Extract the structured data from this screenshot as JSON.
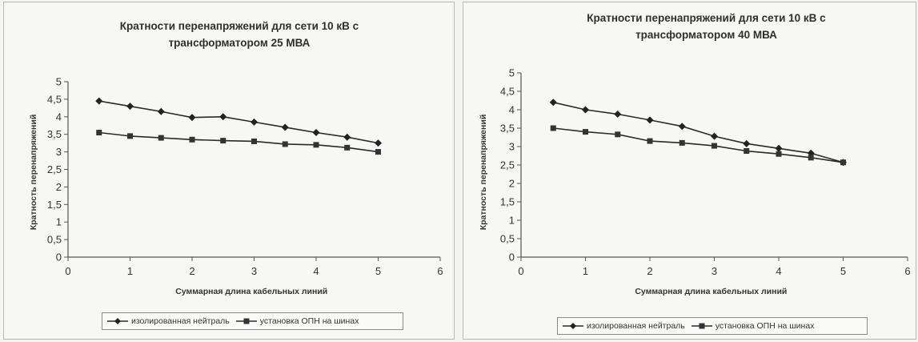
{
  "chart_data": [
    {
      "type": "line",
      "title": "Кратности перенапряжений для сети 10 кВ с трансформатором 25 МВА",
      "xlabel": "Суммарная длина кабельных линий",
      "ylabel": "Кратность перенапряжений",
      "xlim": [
        0,
        6
      ],
      "ylim": [
        0,
        5
      ],
      "x_ticks": [
        "0",
        "1",
        "2",
        "3",
        "4",
        "5",
        "6"
      ],
      "y_ticks": [
        "0",
        "0,5",
        "1",
        "1,5",
        "2",
        "2,5",
        "3",
        "3,5",
        "4",
        "4,5",
        "5"
      ],
      "x": [
        0.5,
        1,
        1.5,
        2,
        2.5,
        3,
        3.5,
        4,
        4.5,
        5
      ],
      "series": [
        {
          "name": "изолированная нейтраль",
          "marker": "diamond",
          "values": [
            4.45,
            4.3,
            4.15,
            3.98,
            4.0,
            3.85,
            3.7,
            3.55,
            3.42,
            3.25
          ]
        },
        {
          "name": "установка ОПН на шинах",
          "marker": "square",
          "values": [
            3.55,
            3.45,
            3.4,
            3.35,
            3.32,
            3.3,
            3.22,
            3.2,
            3.12,
            3.0
          ]
        }
      ],
      "legend": "bottom",
      "grid": false,
      "colors": {
        "line": "#2a2a2a",
        "axis": "#555555"
      }
    },
    {
      "type": "line",
      "title": "Кратности перенапряжений для сети 10 кВ с трансформатором 40 МВА",
      "xlabel": "Суммарная длина кабельных линий",
      "ylabel": "Кратность перенапряжений",
      "xlim": [
        0,
        6
      ],
      "ylim": [
        0,
        5
      ],
      "x_ticks": [
        "0",
        "1",
        "2",
        "3",
        "4",
        "5",
        "6"
      ],
      "y_ticks": [
        "0",
        "0,5",
        "1",
        "1,5",
        "2",
        "2,5",
        "3",
        "3,5",
        "4",
        "4,5",
        "5"
      ],
      "x": [
        0.5,
        1,
        1.5,
        2,
        2.5,
        3,
        3.5,
        4,
        4.5,
        5
      ],
      "series": [
        {
          "name": "изолированная нейтраль",
          "marker": "diamond",
          "values": [
            4.2,
            4.0,
            3.88,
            3.72,
            3.55,
            3.28,
            3.08,
            2.95,
            2.82,
            2.57
          ]
        },
        {
          "name": "установка ОПН на шинах",
          "marker": "square",
          "values": [
            3.5,
            3.4,
            3.33,
            3.15,
            3.1,
            3.02,
            2.88,
            2.8,
            2.7,
            2.57
          ]
        }
      ],
      "legend": "bottom",
      "grid": false,
      "colors": {
        "line": "#2a2a2a",
        "axis": "#555555"
      }
    }
  ]
}
